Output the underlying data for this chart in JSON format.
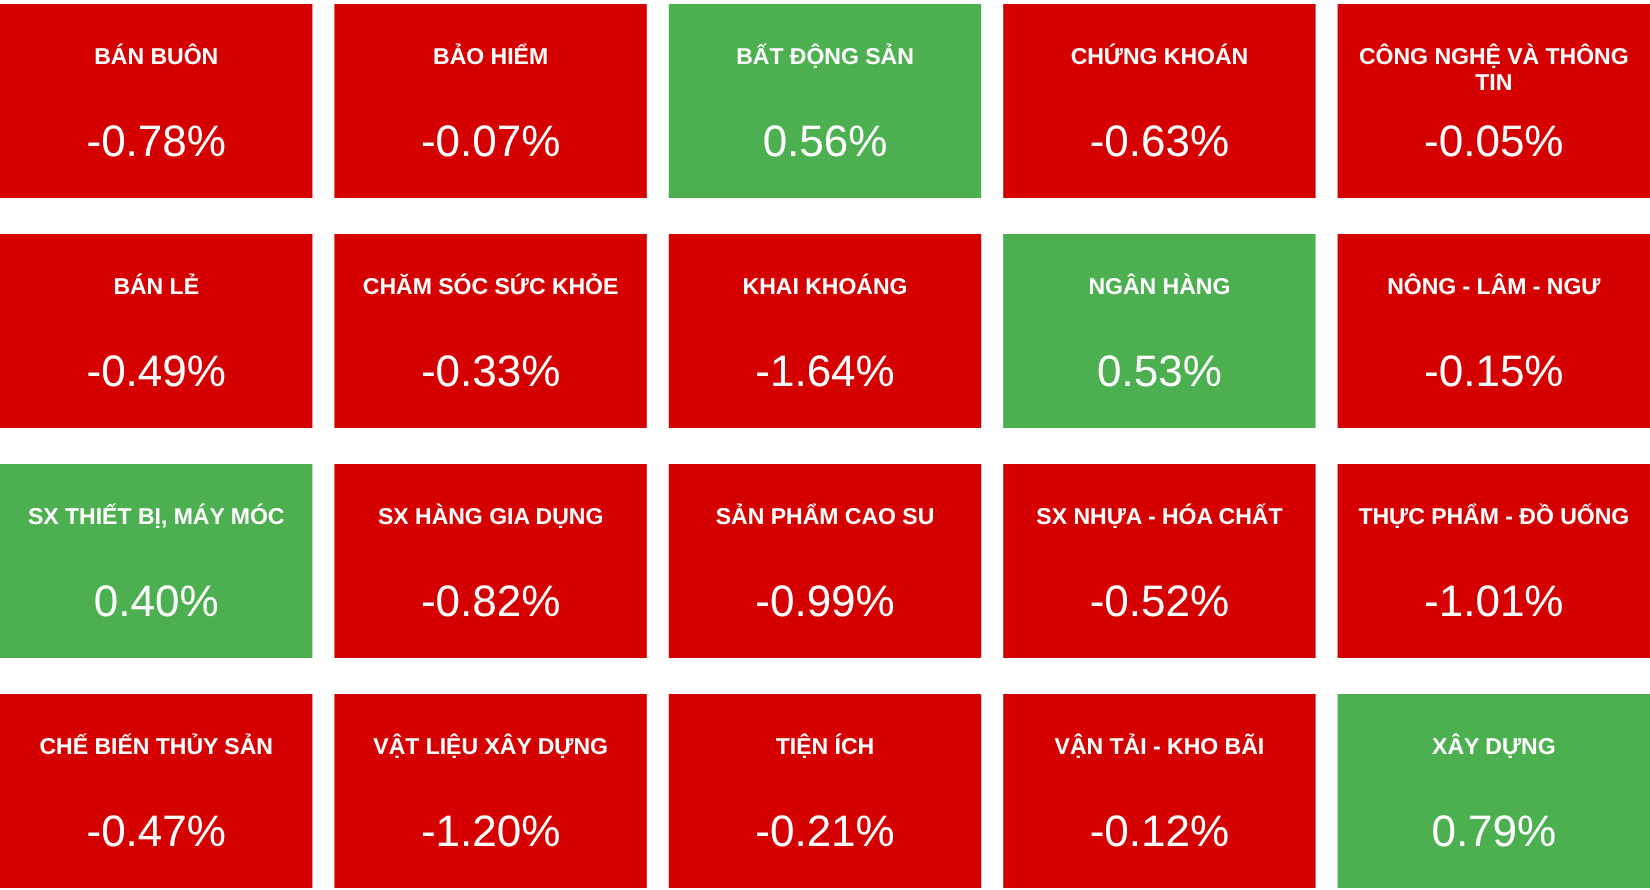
{
  "chart_data": {
    "type": "other",
    "categories": [
      "BÁN BUÔN",
      "BẢO HIỂM",
      "BẤT ĐỘNG SẢN",
      "CHỨNG KHOÁN",
      "CÔNG NGHỆ VÀ THÔNG TIN",
      "BÁN LẺ",
      "CHĂM SÓC SỨC KHỎE",
      "KHAI KHOÁNG",
      "NGÂN HÀNG",
      "NÔNG - LÂM - NGƯ",
      "SX THIẾT BỊ, MÁY MÓC",
      "SX HÀNG GIA DỤNG",
      "SẢN PHẨM CAO SU",
      "SX NHỰA - HÓA CHẤT",
      "THỰC PHẨM - ĐỒ UỐNG",
      "CHẾ BIẾN THỦY SẢN",
      "VẬT LIỆU XÂY DỰNG",
      "TIỆN ÍCH",
      "VẬN TẢI - KHO BÃI",
      "XÂY DỰNG"
    ],
    "values": [
      -0.78,
      -0.07,
      0.56,
      -0.63,
      -0.05,
      -0.49,
      -0.33,
      -1.64,
      0.53,
      -0.15,
      0.4,
      -0.82,
      -0.99,
      -0.52,
      -1.01,
      -0.47,
      -1.2,
      -0.21,
      -0.12,
      0.79
    ],
    "value_labels": [
      "-0.78%",
      "-0.07%",
      "0.56%",
      "-0.63%",
      "-0.05%",
      "-0.49%",
      "-0.33%",
      "-1.64%",
      "0.53%",
      "-0.15%",
      "0.40%",
      "-0.82%",
      "-0.99%",
      "-0.52%",
      "-1.01%",
      "-0.47%",
      "-1.20%",
      "-0.21%",
      "-0.12%",
      "0.79%"
    ],
    "colors": [
      "#d50000",
      "#d50000",
      "#4caf50",
      "#d50000",
      "#d50000",
      "#d50000",
      "#d50000",
      "#d50000",
      "#4caf50",
      "#d50000",
      "#4caf50",
      "#d50000",
      "#d50000",
      "#d50000",
      "#d50000",
      "#d50000",
      "#d50000",
      "#d50000",
      "#d50000",
      "#4caf50"
    ]
  }
}
